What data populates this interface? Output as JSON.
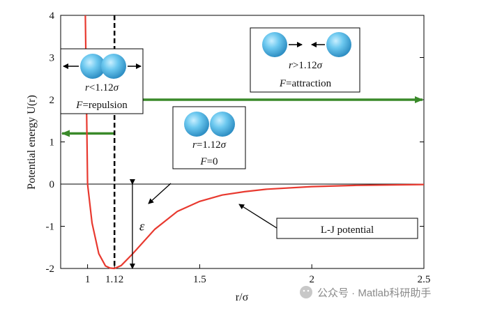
{
  "chart_data": {
    "type": "line",
    "title": "",
    "xlabel": "r/σ",
    "ylabel": "Potential energy U(r)",
    "xlim": [
      0.88,
      2.5
    ],
    "ylim": [
      -2,
      4
    ],
    "x_ticks": [
      1,
      1.12,
      1.5,
      2,
      2.5
    ],
    "x_tick_labels": [
      "1",
      "1.12",
      "1.5",
      "2",
      "2.5"
    ],
    "y_ticks": [
      -2,
      -1,
      0,
      1,
      2,
      3,
      4
    ],
    "y_tick_labels": [
      "-2",
      "-1",
      "0",
      "1",
      "2",
      "3",
      "4"
    ],
    "grid": false,
    "series": [
      {
        "name": "L-J potential",
        "color": "#e8392f",
        "x": [
          0.99,
          1.0,
          1.02,
          1.05,
          1.08,
          1.1,
          1.12,
          1.15,
          1.2,
          1.3,
          1.4,
          1.5,
          1.6,
          1.7,
          1.8,
          2.0,
          2.2,
          2.5
        ],
        "y": [
          4.0,
          0.0,
          -0.92,
          -1.65,
          -1.94,
          -1.99,
          -2.0,
          -1.93,
          -1.66,
          -1.07,
          -0.65,
          -0.41,
          -0.26,
          -0.18,
          -0.12,
          -0.06,
          -0.03,
          -0.01
        ]
      }
    ],
    "annotations": {
      "equilibrium_x": 1.12,
      "zero_line_y": 0,
      "epsilon_label": "ε",
      "lj_label": "L-J potential",
      "repulsion": {
        "r_prefix": "r",
        "r_suffix": "<1.12",
        "sigma": "σ",
        "f_prefix": "F",
        "f_suffix": "=repulsion"
      },
      "equilibrium": {
        "r_prefix": "r",
        "r_suffix": "=1.12",
        "sigma": "σ",
        "f_prefix": "F",
        "f_suffix": "=0"
      },
      "attraction": {
        "r_prefix": "r",
        "r_suffix": ">1.12",
        "sigma": "σ",
        "f_prefix": "F",
        "f_suffix": "=attraction"
      },
      "force_arrow_color": "#3a8a2a",
      "particle_color": "#5bc2ea"
    }
  },
  "watermark": "公众号 · Matlab科研助手"
}
